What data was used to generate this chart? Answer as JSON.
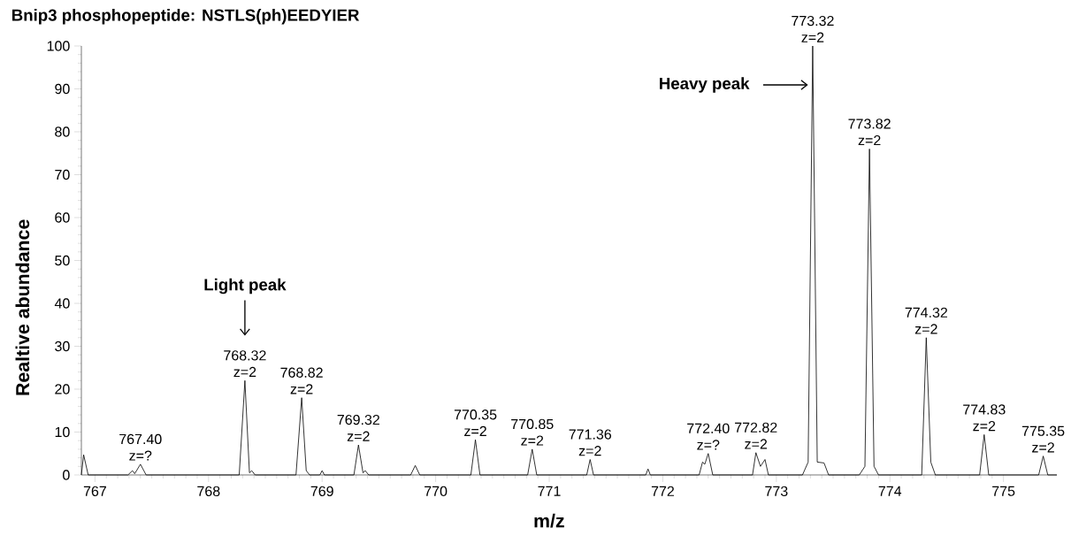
{
  "chart_data": {
    "type": "line",
    "title": "Bnip3 phosphopeptide: NSTLS(ph)EEDYIER",
    "xlabel": "m/z",
    "ylabel": "Realtive abundance",
    "x": [
      766.88,
      766.9,
      766.94,
      767.29,
      767.33,
      767.35,
      767.4,
      767.45,
      768.27,
      768.32,
      768.36,
      768.38,
      768.41,
      768.77,
      768.82,
      768.86,
      768.89,
      768.98,
      769.0,
      769.02,
      769.28,
      769.32,
      769.36,
      769.38,
      769.41,
      769.78,
      769.82,
      769.86,
      770.31,
      770.35,
      770.39,
      770.81,
      770.85,
      770.89,
      771.33,
      771.36,
      771.39,
      771.85,
      771.87,
      771.89,
      772.32,
      772.35,
      772.37,
      772.4,
      772.44,
      772.79,
      772.82,
      772.86,
      772.9,
      772.93,
      773.23,
      773.28,
      773.32,
      773.36,
      773.42,
      773.46,
      773.73,
      773.78,
      773.82,
      773.86,
      773.9,
      774.28,
      774.32,
      774.36,
      774.4,
      774.79,
      774.83,
      774.87,
      775.31,
      775.35,
      775.39,
      775.47
    ],
    "series": [
      {
        "color": "#000000",
        "values": [
          0,
          4.7,
          0,
          0,
          1,
          0.3,
          2.5,
          0,
          0,
          22,
          0.5,
          1,
          0,
          0,
          18,
          1,
          0,
          0,
          1,
          0,
          0,
          7,
          0.5,
          1,
          0,
          0,
          2.2,
          0,
          0,
          8.2,
          0,
          0,
          6,
          0,
          0,
          3.6,
          0,
          0,
          1.4,
          0,
          0,
          3,
          2.5,
          5,
          0,
          0,
          5.2,
          2,
          3.6,
          0,
          0,
          3,
          100,
          3,
          2.8,
          0,
          0,
          2,
          76,
          2,
          0,
          0,
          32,
          3,
          0,
          0,
          9.4,
          0,
          0,
          4.4,
          0,
          0
        ]
      }
    ],
    "xlim": [
      766.88,
      775.47
    ],
    "ylim": [
      0,
      100
    ],
    "xticks": [
      767,
      768,
      769,
      770,
      771,
      772,
      773,
      774,
      775
    ],
    "yticks": [
      0,
      10,
      20,
      30,
      40,
      50,
      60,
      70,
      80,
      90,
      100
    ],
    "annotations": [
      "Light peak",
      "Heavy peak",
      {
        "text": "767.40 z=?",
        "x": 767.4,
        "y": 2.5
      },
      {
        "text": "768.32 z=2",
        "x": 768.32,
        "y": 22
      },
      {
        "text": "768.82 z=2",
        "x": 768.82,
        "y": 18
      },
      {
        "text": "769.32 z=2",
        "x": 769.32,
        "y": 7
      },
      {
        "text": "770.35 z=2",
        "x": 770.35,
        "y": 8.2
      },
      {
        "text": "770.85 z=2",
        "x": 770.85,
        "y": 6
      },
      {
        "text": "771.36 z=2",
        "x": 771.36,
        "y": 3.6
      },
      {
        "text": "772.40 z=?",
        "x": 772.4,
        "y": 5
      },
      {
        "text": "772.82 z=2",
        "x": 772.82,
        "y": 5.2
      },
      {
        "text": "773.32 z=2",
        "x": 773.32,
        "y": 100
      },
      {
        "text": "773.82 z=2",
        "x": 773.82,
        "y": 76
      },
      {
        "text": "774.32 z=2",
        "x": 774.32,
        "y": 32
      },
      {
        "text": "774.83 z=2",
        "x": 774.83,
        "y": 9.4
      },
      {
        "text": "775.35 z=2",
        "x": 775.35,
        "y": 4.4
      }
    ]
  }
}
